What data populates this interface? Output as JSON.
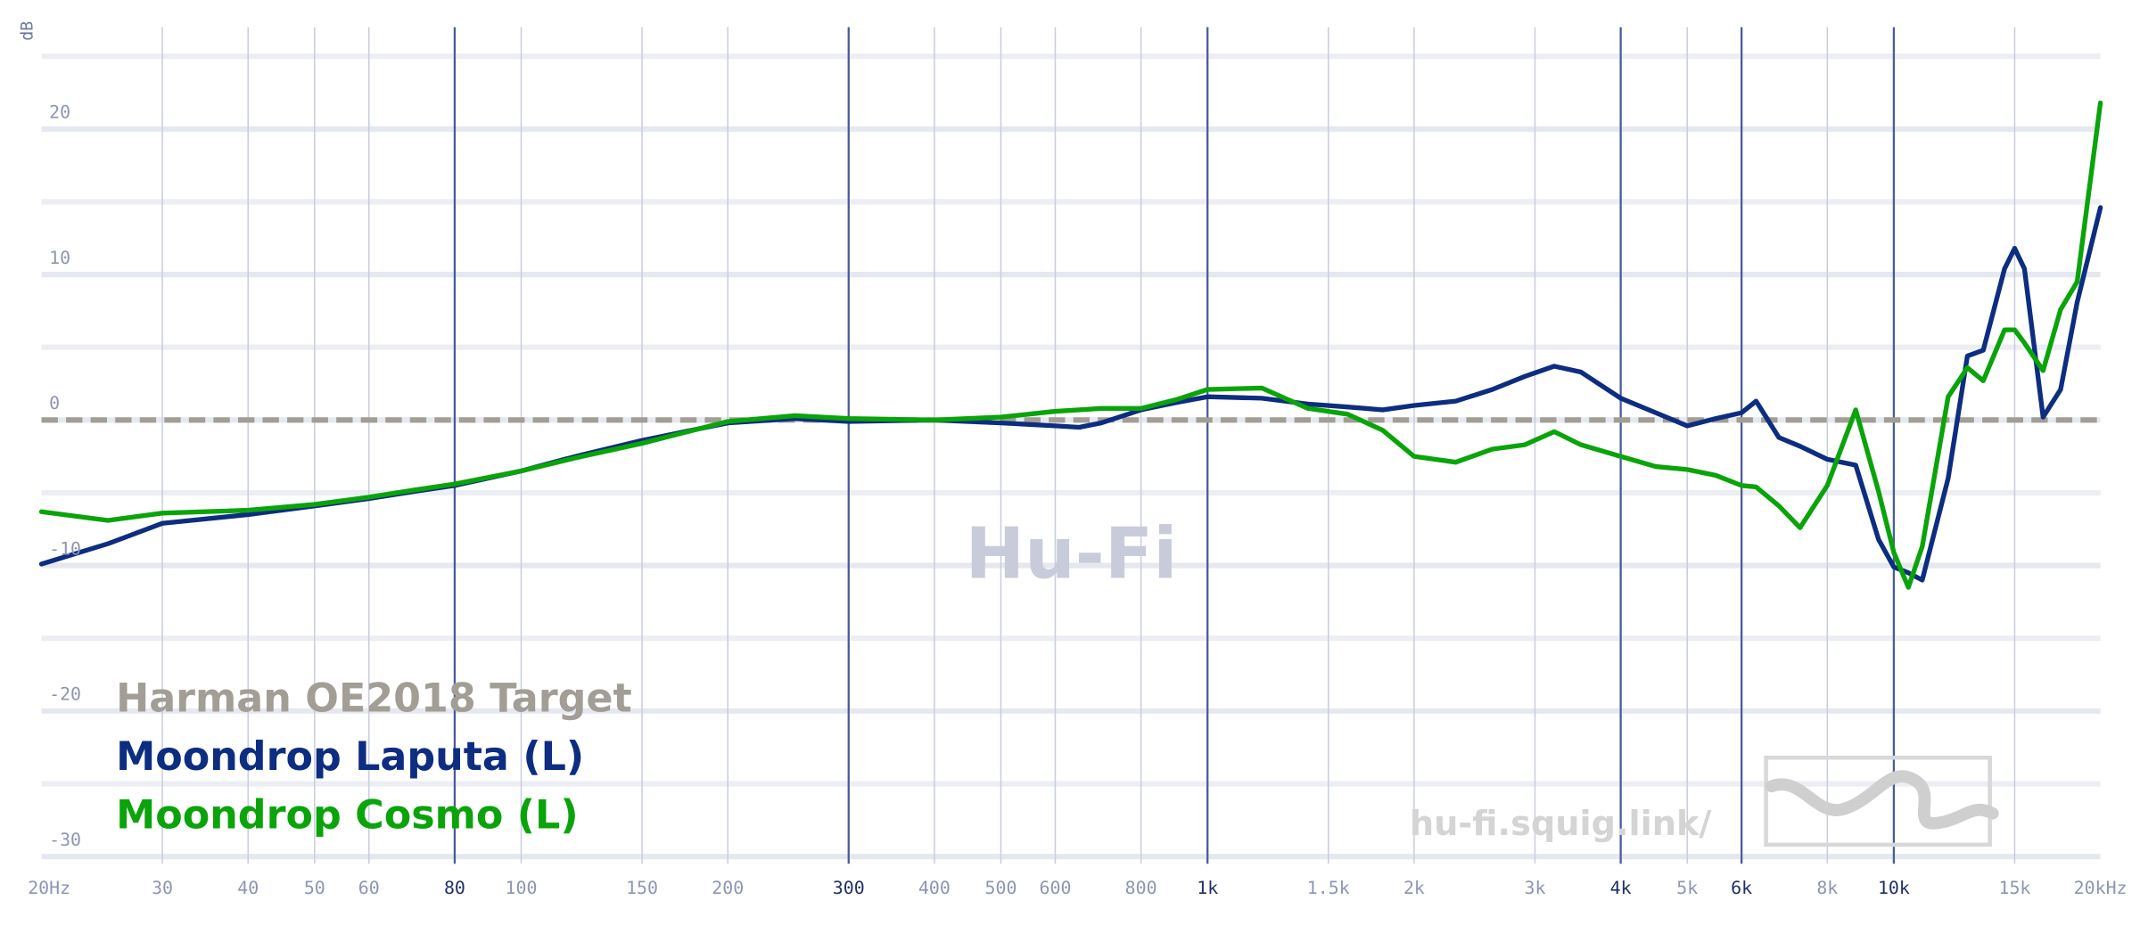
{
  "chart_data": {
    "type": "line",
    "y_label": "dB",
    "watermark": "Hu-Fi",
    "site": "hu-fi.squig.link/",
    "log_x": true,
    "grid": true,
    "xlim": [
      20,
      20000
    ],
    "ylim": [
      -30.5,
      27
    ],
    "xticks": [
      {
        "value": 20,
        "label": "20Hz"
      },
      30,
      40,
      50,
      60,
      80,
      100,
      150,
      200,
      300,
      400,
      500,
      600,
      800,
      {
        "value": 1000,
        "label": "1k"
      },
      {
        "value": 1500,
        "label": "1.5k"
      },
      {
        "value": 2000,
        "label": "2k"
      },
      {
        "value": 3000,
        "label": "3k"
      },
      {
        "value": 4000,
        "label": "4k"
      },
      {
        "value": 5000,
        "label": "5k"
      },
      {
        "value": 6000,
        "label": "6k"
      },
      {
        "value": 8000,
        "label": "8k"
      },
      {
        "value": 10000,
        "label": "10k"
      },
      {
        "value": 15000,
        "label": "15k"
      },
      {
        "value": 20000,
        "label": "20kHz"
      }
    ],
    "emphasized_xticks": [
      80,
      300,
      1000,
      4000,
      6000,
      10000
    ],
    "yticks": [
      -30,
      -20,
      -10,
      0,
      10,
      20
    ],
    "minor_ygrid": [
      -25,
      -15,
      -5,
      5,
      15,
      25
    ],
    "x": [
      20,
      25,
      30,
      40,
      50,
      60,
      70,
      80,
      100,
      120,
      150,
      200,
      250,
      300,
      400,
      500,
      600,
      650,
      700,
      800,
      900,
      1000,
      1200,
      1400,
      1600,
      1800,
      2000,
      2300,
      2600,
      2900,
      3200,
      3500,
      4000,
      4500,
      5000,
      5500,
      6000,
      6300,
      6800,
      7300,
      8000,
      8800,
      9500,
      10000,
      10500,
      11000,
      12000,
      12800,
      13500,
      14500,
      15000,
      15500,
      16500,
      17500,
      18500,
      20000
    ],
    "series": [
      {
        "name": "Harman OE2018 Target",
        "color": "#a29e95",
        "dashed": true,
        "values": [
          0,
          0,
          0,
          0,
          0,
          0,
          0,
          0,
          0,
          0,
          0,
          0,
          0,
          0,
          0,
          0,
          0,
          0,
          0,
          0,
          0,
          0,
          0,
          0,
          0,
          0,
          0,
          0,
          0,
          0,
          0,
          0,
          0,
          0,
          0,
          0,
          0,
          0,
          0,
          0,
          0,
          0,
          0,
          0,
          0,
          0,
          0,
          0,
          0,
          0,
          0,
          0,
          0,
          0,
          0,
          0
        ]
      },
      {
        "name": "Moondrop Laputa (L)",
        "color": "#0d2d80",
        "values": [
          -9.9,
          -8.5,
          -7.1,
          -6.5,
          -5.9,
          -5.4,
          -4.9,
          -4.5,
          -3.5,
          -2.5,
          -1.4,
          -0.2,
          0.1,
          -0.1,
          0,
          -0.2,
          -0.4,
          -0.5,
          -0.2,
          0.7,
          1.2,
          1.6,
          1.5,
          1.1,
          0.9,
          0.7,
          1.0,
          1.3,
          2.1,
          3.0,
          3.7,
          3.3,
          1.5,
          0.5,
          -0.4,
          0.1,
          0.5,
          1.3,
          -1.2,
          -1.8,
          -2.7,
          -3.1,
          -8.2,
          -10.1,
          -10.5,
          -11.0,
          -4.0,
          4.4,
          4.8,
          10.4,
          11.8,
          10.4,
          0.2,
          2.1,
          8.1,
          14.6
        ]
      },
      {
        "name": "Moondrop Cosmo (L)",
        "color": "#0aa40a",
        "values": [
          -6.3,
          -6.9,
          -6.4,
          -6.2,
          -5.8,
          -5.3,
          -4.8,
          -4.4,
          -3.5,
          -2.6,
          -1.6,
          -0.1,
          0.3,
          0.1,
          0,
          0.2,
          0.6,
          0.7,
          0.8,
          0.8,
          1.4,
          2.1,
          2.2,
          0.8,
          0.4,
          -0.7,
          -2.5,
          -2.9,
          -2.0,
          -1.7,
          -0.8,
          -1.7,
          -2.5,
          -3.2,
          -3.4,
          -3.8,
          -4.5,
          -4.6,
          -5.9,
          -7.4,
          -4.5,
          0.7,
          -4.9,
          -9.1,
          -11.5,
          -8.7,
          1.6,
          3.6,
          2.7,
          6.2,
          6.2,
          5.3,
          3.4,
          7.6,
          9.5,
          21.8
        ]
      }
    ]
  }
}
